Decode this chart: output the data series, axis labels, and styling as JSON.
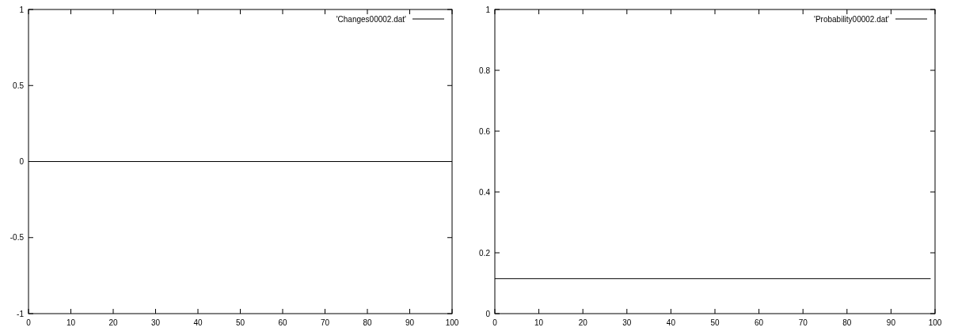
{
  "chart_data": [
    {
      "type": "line",
      "x": [
        0,
        100
      ],
      "series": [
        {
          "name": "'Changes00002.dat'",
          "color": "#000000",
          "values": [
            0,
            0
          ]
        }
      ],
      "xlim": [
        0,
        100
      ],
      "xticks": [
        0,
        10,
        20,
        30,
        40,
        50,
        60,
        70,
        80,
        90,
        100
      ],
      "ylim": [
        -1,
        1
      ],
      "yticks": [
        -1,
        -0.5,
        0,
        0.5,
        1
      ],
      "legend": "top right",
      "marker": "none",
      "line_style": "solid"
    },
    {
      "type": "line",
      "x": [
        0,
        99
      ],
      "series": [
        {
          "name": "'Probability00002.dat'",
          "color": "#000000",
          "values": [
            0.115,
            0.115
          ]
        }
      ],
      "xlim": [
        0,
        100
      ],
      "xticks": [
        0,
        10,
        20,
        30,
        40,
        50,
        60,
        70,
        80,
        90,
        100
      ],
      "ylim": [
        0,
        1
      ],
      "yticks": [
        0,
        0.2,
        0.4,
        0.6,
        0.8,
        1
      ],
      "legend": "top right",
      "marker": "none",
      "line_style": "solid"
    }
  ]
}
